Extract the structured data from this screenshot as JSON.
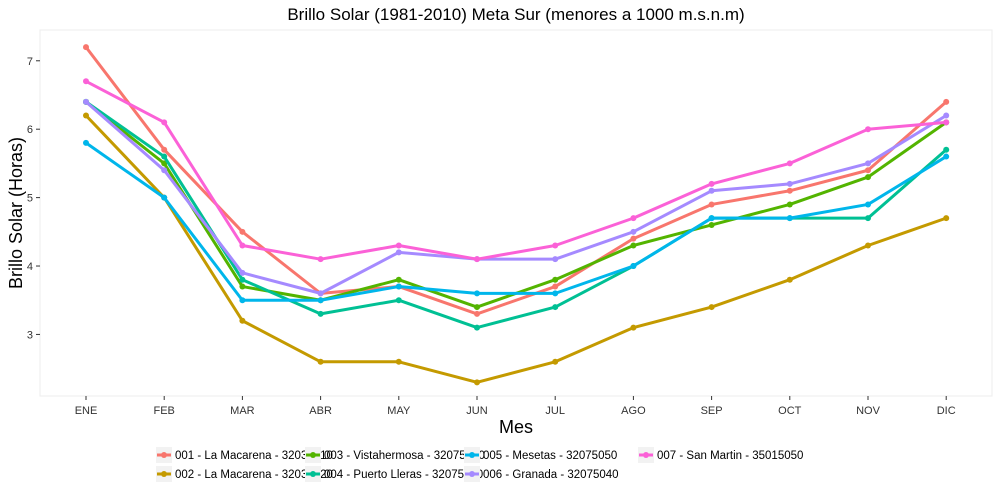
{
  "chart_data": {
    "type": "line",
    "title": "Brillo Solar (1981-2010) Meta Sur (menores a 1000 m.s.n.m)",
    "xlabel": "Mes",
    "ylabel": "Brillo Solar (Horas)",
    "categories": [
      "ENE",
      "FEB",
      "MAR",
      "ABR",
      "MAY",
      "JUN",
      "JUL",
      "AGO",
      "SEP",
      "OCT",
      "NOV",
      "DIC"
    ],
    "ylim": [
      2.1,
      7.45
    ],
    "yticks": [
      3,
      4,
      5,
      6,
      7
    ],
    "grid": false,
    "legend_position": "bottom",
    "series": [
      {
        "name": "001 - La Macarena - 32035010",
        "color": "#F8766D",
        "values": [
          7.2,
          5.7,
          4.5,
          3.6,
          3.7,
          3.3,
          3.7,
          4.4,
          4.9,
          5.1,
          5.4,
          6.4
        ]
      },
      {
        "name": "002 - La Macarena - 32035020",
        "color": "#C49A00",
        "values": [
          6.2,
          5.0,
          3.2,
          2.6,
          2.6,
          2.3,
          2.6,
          3.1,
          3.4,
          3.8,
          4.3,
          4.7
        ]
      },
      {
        "name": "003 - Vistahermosa - 32075030",
        "color": "#53B400",
        "values": [
          6.4,
          5.5,
          3.7,
          3.5,
          3.8,
          3.4,
          3.8,
          4.3,
          4.6,
          4.9,
          5.3,
          6.1
        ]
      },
      {
        "name": "004 - Puerto Lleras - 32075080",
        "color": "#00C094",
        "values": [
          6.4,
          5.6,
          3.8,
          3.3,
          3.5,
          3.1,
          3.4,
          4.0,
          4.7,
          4.7,
          4.7,
          5.7
        ]
      },
      {
        "name": "005 - Mesetas - 32075050",
        "color": "#00B6EB",
        "values": [
          5.8,
          5.0,
          3.5,
          3.5,
          3.7,
          3.6,
          3.6,
          4.0,
          4.7,
          4.7,
          4.9,
          5.6
        ]
      },
      {
        "name": "006 - Granada - 32075040",
        "color": "#A58AFF",
        "values": [
          6.4,
          5.4,
          3.9,
          3.6,
          4.2,
          4.1,
          4.1,
          4.5,
          5.1,
          5.2,
          5.5,
          6.2
        ]
      },
      {
        "name": "007 - San Martin - 35015050",
        "color": "#FB61D7",
        "values": [
          6.7,
          6.1,
          4.3,
          4.1,
          4.3,
          4.1,
          4.3,
          4.7,
          5.2,
          5.5,
          6.0,
          6.1
        ]
      }
    ]
  }
}
